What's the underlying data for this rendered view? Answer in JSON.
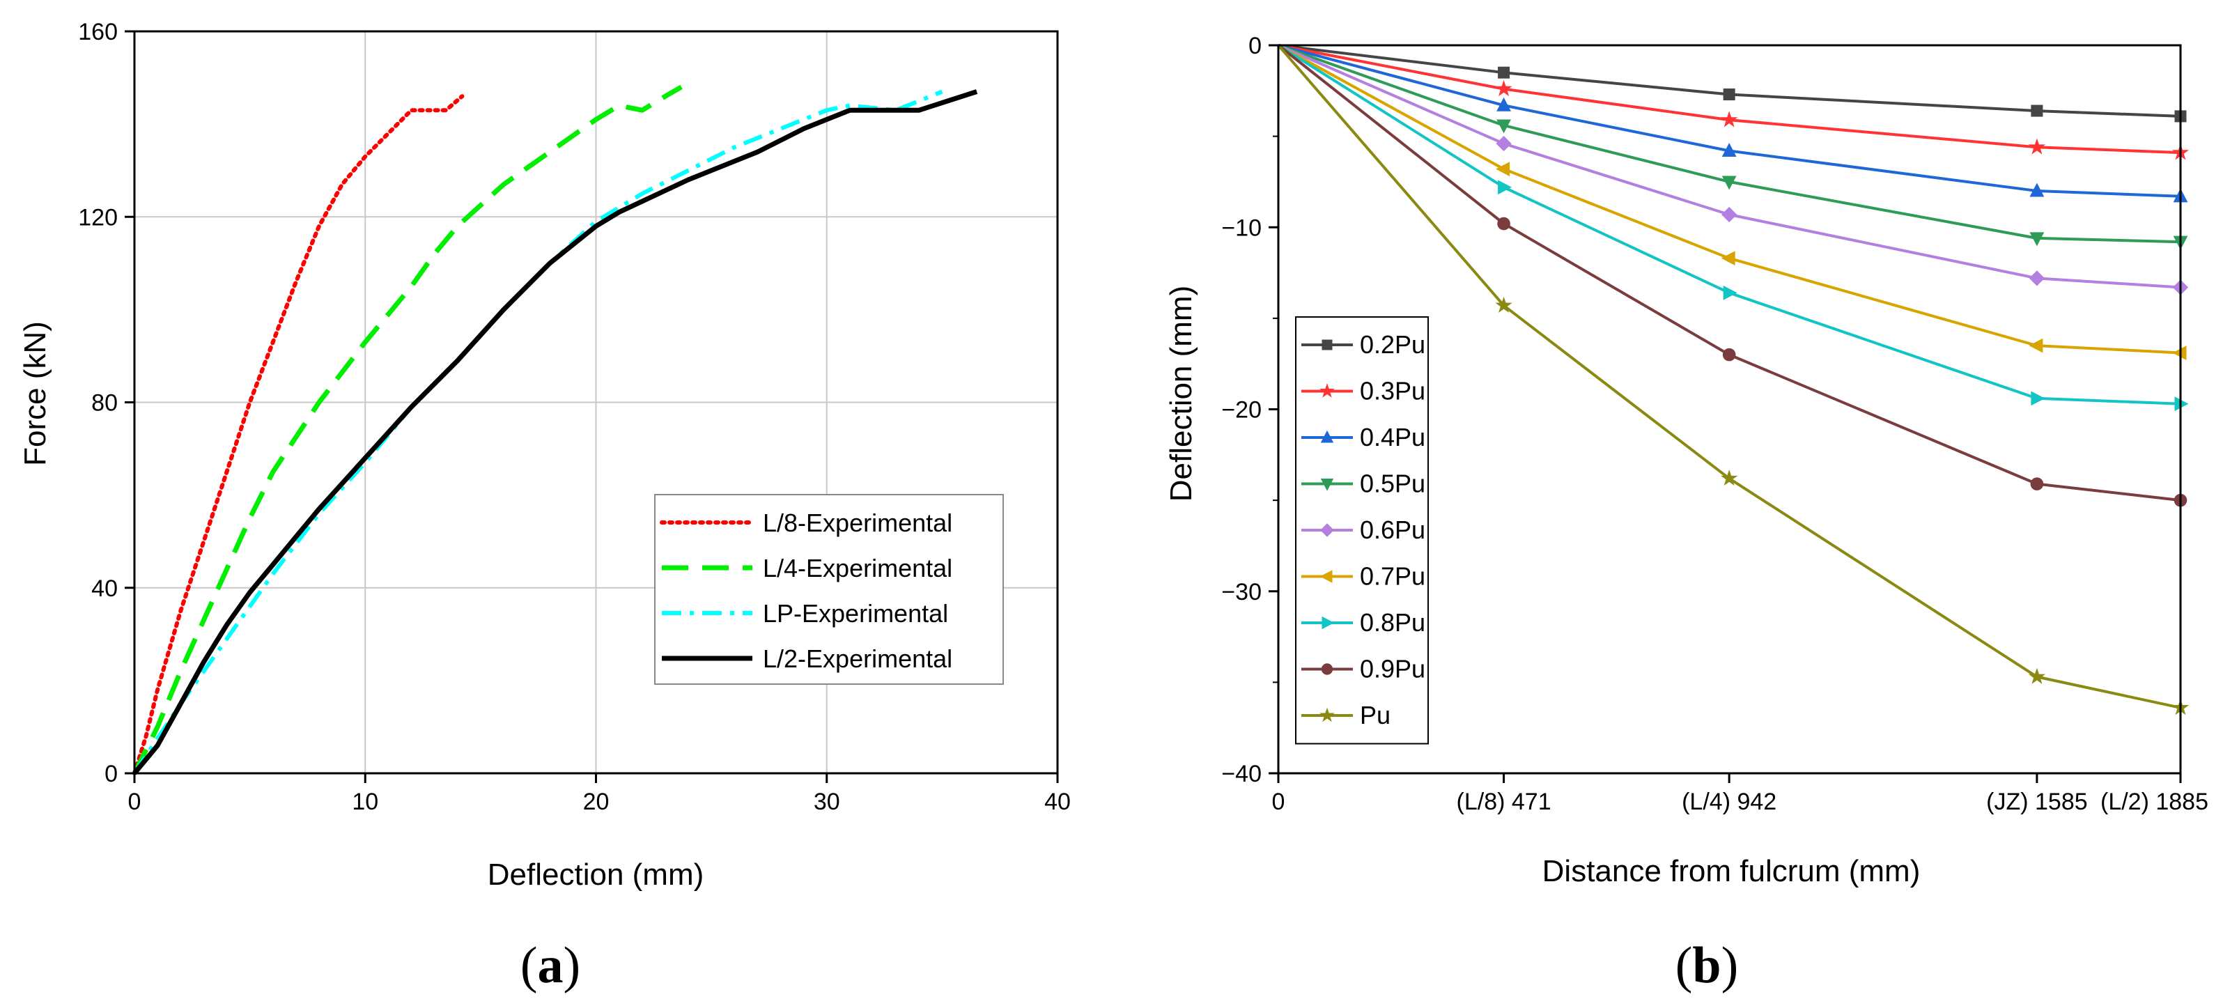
{
  "chart_data": [
    {
      "panel_label": "a",
      "type": "line",
      "xlabel": "Deflection (mm)",
      "ylabel": "Force (kN)",
      "xlim": [
        0,
        40
      ],
      "ylim": [
        0,
        160
      ],
      "xticks": [
        0,
        10,
        20,
        30,
        40
      ],
      "yticks": [
        0,
        40,
        80,
        120,
        160
      ],
      "grid": true,
      "legend_position": "lower-right",
      "series": [
        {
          "name": "L/8-Experimental",
          "color": "#ff0000",
          "dash": "dotted",
          "points": [
            [
              0,
              0
            ],
            [
              0.5,
              8
            ],
            [
              1,
              18
            ],
            [
              2,
              35
            ],
            [
              3,
              50
            ],
            [
              4,
              65
            ],
            [
              5,
              80
            ],
            [
              6,
              93
            ],
            [
              7,
              106
            ],
            [
              8,
              118
            ],
            [
              9,
              127
            ],
            [
              10,
              133
            ],
            [
              11,
              138
            ],
            [
              12,
              143
            ],
            [
              13,
              143
            ],
            [
              13.5,
              143
            ],
            [
              14.2,
              146
            ]
          ]
        },
        {
          "name": "L/4-Experimental",
          "color": "#00ee00",
          "dash": "dashed",
          "points": [
            [
              0,
              0
            ],
            [
              1,
              10
            ],
            [
              2,
              22
            ],
            [
              3,
              33
            ],
            [
              4,
              44
            ],
            [
              5,
              55
            ],
            [
              6,
              65
            ],
            [
              8,
              80
            ],
            [
              10,
              93
            ],
            [
              12,
              105
            ],
            [
              13,
              112
            ],
            [
              14,
              118
            ],
            [
              16,
              127
            ],
            [
              18,
              134
            ],
            [
              20,
              141
            ],
            [
              21,
              144
            ],
            [
              22,
              143
            ],
            [
              23,
              146
            ],
            [
              23.7,
              148
            ]
          ]
        },
        {
          "name": "LP-Experimental",
          "color": "#00ffff",
          "dash": "dashdot",
          "points": [
            [
              0,
              0
            ],
            [
              2,
              15
            ],
            [
              4,
              29
            ],
            [
              6,
              43
            ],
            [
              8,
              56
            ],
            [
              10,
              67
            ],
            [
              12,
              79
            ],
            [
              14,
              89
            ],
            [
              16,
              100
            ],
            [
              18,
              110
            ],
            [
              20,
              119
            ],
            [
              22,
              125
            ],
            [
              24,
              130
            ],
            [
              26,
              135
            ],
            [
              28,
              139
            ],
            [
              30,
              143
            ],
            [
              31,
              144
            ],
            [
              33,
              143
            ],
            [
              35,
              147
            ]
          ]
        },
        {
          "name": "L/2-Experimental",
          "color": "#000000",
          "dash": "solid",
          "points": [
            [
              0,
              0
            ],
            [
              1,
              6
            ],
            [
              2,
              15
            ],
            [
              3,
              24
            ],
            [
              4,
              32
            ],
            [
              5,
              39
            ],
            [
              6,
              45
            ],
            [
              7,
              51
            ],
            [
              8,
              57
            ],
            [
              10,
              68
            ],
            [
              12,
              79
            ],
            [
              14,
              89
            ],
            [
              16,
              100
            ],
            [
              18,
              110
            ],
            [
              20,
              118
            ],
            [
              21,
              121
            ],
            [
              24,
              128
            ],
            [
              27,
              134
            ],
            [
              29,
              139
            ],
            [
              31,
              143
            ],
            [
              32,
              143
            ],
            [
              34,
              143
            ],
            [
              36.5,
              147
            ]
          ]
        }
      ]
    },
    {
      "panel_label": "b",
      "type": "line",
      "xlabel": "Distance from fulcrum (mm)",
      "ylabel": "Deflection (mm)",
      "xlim": [
        0,
        1885
      ],
      "ylim": [
        -40,
        0
      ],
      "x": [
        0,
        471,
        942,
        1585,
        1885
      ],
      "xtick_labels": [
        "0",
        "(L/8) 471",
        "(L/4) 942",
        "(JZ) 1585",
        "(L/2) 1885"
      ],
      "yticks": [
        0,
        -10,
        -20,
        -30,
        -40
      ],
      "grid": false,
      "legend_position": "left",
      "series": [
        {
          "name": "0.2Pu",
          "color": "#454545",
          "marker": "square",
          "values": [
            0,
            -1.5,
            -2.7,
            -3.6,
            -3.9
          ]
        },
        {
          "name": "0.3Pu",
          "color": "#ff3333",
          "marker": "star",
          "values": [
            0,
            -2.4,
            -4.1,
            -5.6,
            -5.9
          ]
        },
        {
          "name": "0.4Pu",
          "color": "#1f66d6",
          "marker": "triangle-up",
          "values": [
            0,
            -3.3,
            -5.8,
            -8.0,
            -8.3
          ]
        },
        {
          "name": "0.5Pu",
          "color": "#2e9b57",
          "marker": "triangle-down",
          "values": [
            0,
            -4.4,
            -7.5,
            -10.6,
            -10.8
          ]
        },
        {
          "name": "0.6Pu",
          "color": "#b37fe0",
          "marker": "diamond",
          "values": [
            0,
            -5.4,
            -9.3,
            -12.8,
            -13.3
          ]
        },
        {
          "name": "0.7Pu",
          "color": "#d9a400",
          "marker": "triangle-left",
          "values": [
            0,
            -6.8,
            -11.7,
            -16.5,
            -16.9
          ]
        },
        {
          "name": "0.8Pu",
          "color": "#12c4c4",
          "marker": "triangle-right",
          "values": [
            0,
            -7.8,
            -13.6,
            -19.4,
            -19.7
          ]
        },
        {
          "name": "0.9Pu",
          "color": "#7a3c3c",
          "marker": "circle",
          "values": [
            0,
            -9.8,
            -17.0,
            -24.1,
            -25.0
          ]
        },
        {
          "name": "Pu",
          "color": "#8a8a12",
          "marker": "star",
          "values": [
            0,
            -14.3,
            -23.8,
            -34.7,
            -36.4
          ]
        }
      ]
    }
  ]
}
